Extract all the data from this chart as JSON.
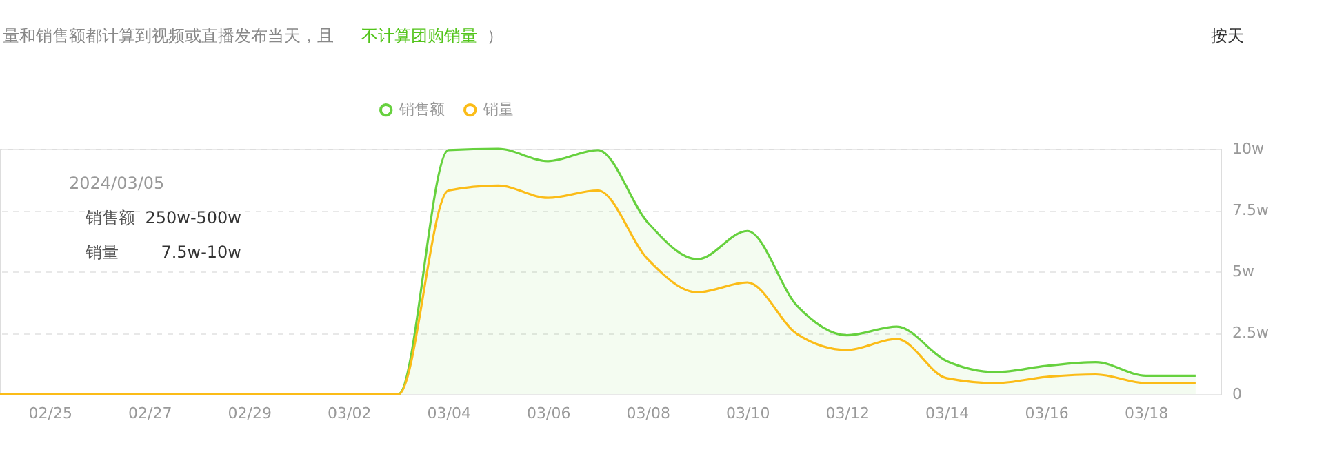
{
  "chart_data": {
    "type": "line",
    "x": [
      "2024-02-24",
      "2024-02-25",
      "2024-02-26",
      "2024-02-27",
      "2024-02-28",
      "2024-02-29",
      "2024-03-01",
      "2024-03-02",
      "2024-03-03",
      "2024-03-04",
      "2024-03-05",
      "2024-03-06",
      "2024-03-07",
      "2024-03-08",
      "2024-03-09",
      "2024-03-10",
      "2024-03-11",
      "2024-03-12",
      "2024-03-13",
      "2024-03-14",
      "2024-03-15",
      "2024-03-16",
      "2024-03-17",
      "2024-03-18",
      "2024-03-19"
    ],
    "series": [
      {
        "name": "销售额",
        "type": "area",
        "color": "#67d13f",
        "values": [
          0,
          0,
          0,
          0,
          0,
          0,
          0,
          0,
          0,
          9.95,
          10,
          9.5,
          9.95,
          7.0,
          5.5,
          6.65,
          3.6,
          2.4,
          2.75,
          1.35,
          0.9,
          1.15,
          1.3,
          0.75,
          0.75
        ]
      },
      {
        "name": "销量",
        "color": "#fbbc18",
        "values": [
          0,
          0,
          0,
          0,
          0,
          0,
          0,
          0,
          0,
          8.3,
          8.5,
          8.0,
          8.3,
          5.5,
          4.15,
          4.55,
          2.45,
          1.8,
          2.25,
          0.65,
          0.45,
          0.7,
          0.8,
          0.45,
          0.45
        ]
      }
    ],
    "xlim": [
      "2024-02-24",
      "2024-03-19T12:00"
    ],
    "xticks": [
      {
        "value": "2024-02-25",
        "label": "02/25"
      },
      {
        "value": "2024-02-27",
        "label": "02/27"
      },
      {
        "value": "2024-02-29",
        "label": "02/29"
      },
      {
        "value": "2024-03-02",
        "label": "03/02"
      },
      {
        "value": "2024-03-04",
        "label": "03/04"
      },
      {
        "value": "2024-03-06",
        "label": "03/06"
      },
      {
        "value": "2024-03-08",
        "label": "03/08"
      },
      {
        "value": "2024-03-10",
        "label": "03/10"
      },
      {
        "value": "2024-03-12",
        "label": "03/12"
      },
      {
        "value": "2024-03-14",
        "label": "03/14"
      },
      {
        "value": "2024-03-16",
        "label": "03/16"
      },
      {
        "value": "2024-03-18",
        "label": "03/18"
      }
    ],
    "ylim": [
      0,
      10
    ],
    "yticks": [
      {
        "value": 0,
        "label": "0"
      },
      {
        "value": 2.5,
        "label": "2.5w"
      },
      {
        "value": 5,
        "label": "5w"
      },
      {
        "value": 7.5,
        "label": "7.5w"
      },
      {
        "value": 10,
        "label": "10w"
      }
    ],
    "grid": "y",
    "legend": "top",
    "line_style": "solid",
    "annotations": [
      "量和销售额都计算到视频或直播发布当天，且",
      "不计算团购销量",
      "）",
      "按天",
      "2024/03/05",
      "销售额",
      "250w-500w",
      "销量",
      "7.5w-10w"
    ]
  }
}
